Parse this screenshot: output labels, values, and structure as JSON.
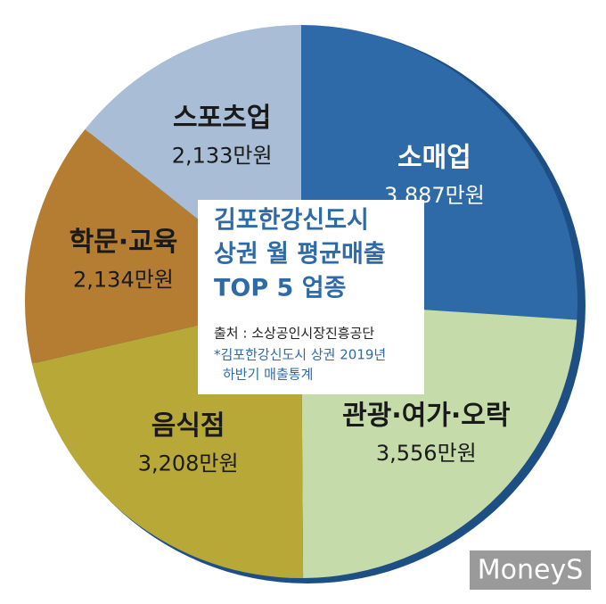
{
  "chart_data": {
    "type": "pie",
    "title": [
      "김포한강신도시",
      "상권 월 평균매출",
      "TOP 5 업종"
    ],
    "source": "출처 : 소상공인시장진흥공단",
    "note": [
      "*김포한강신도시 상권 2019년",
      "하반기 매출통계"
    ],
    "categories": [
      "소매업",
      "관광·여가·오락",
      "음식점",
      "학문·교육",
      "스포츠업"
    ],
    "values": [
      3887,
      3556,
      3208,
      2134,
      2133
    ],
    "value_labels": [
      "3,887만원",
      "3,556만원",
      "3,208만원",
      "2,134만원",
      "2,133만원"
    ],
    "colors": [
      "#2f6aa8",
      "#c5dcaa",
      "#b8a838",
      "#b47d32",
      "#a9bed6"
    ],
    "watermark": "MoneyS"
  }
}
